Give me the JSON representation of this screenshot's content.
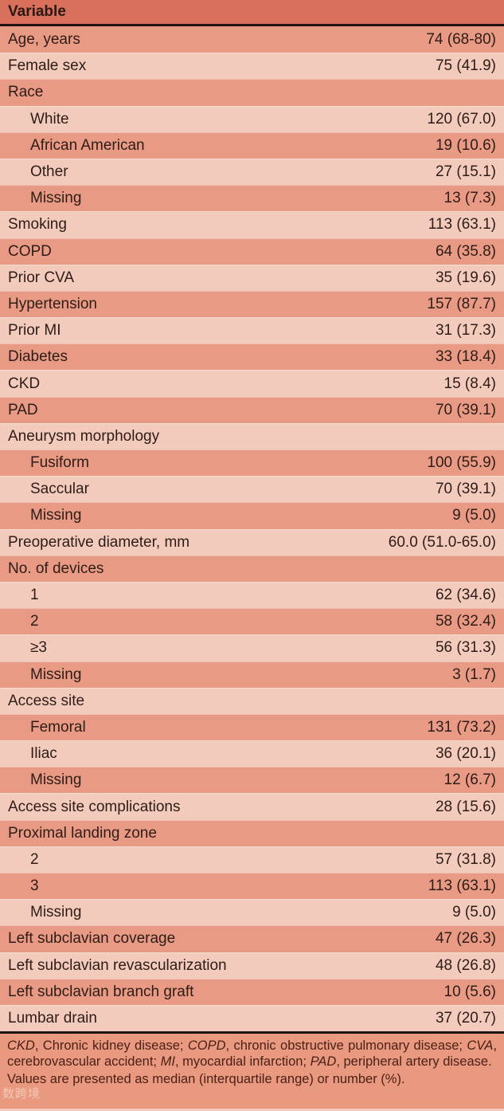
{
  "colors": {
    "header_bg": "#d9705c",
    "row_dark": "#e89a84",
    "row_light": "#f3cbbd",
    "footer_bg": "#e9997f",
    "rule": "#1e1310",
    "text": "#2e1c16",
    "footnote_text": "#4b2015"
  },
  "table": {
    "header": {
      "variable_label": "Variable"
    },
    "rows": [
      {
        "label": "Age, years",
        "value": "74 (68-80)",
        "indent": false
      },
      {
        "label": "Female sex",
        "value": "75 (41.9)",
        "indent": false
      },
      {
        "label": "Race",
        "value": "",
        "indent": false
      },
      {
        "label": "White",
        "value": "120 (67.0)",
        "indent": true
      },
      {
        "label": "African American",
        "value": "19 (10.6)",
        "indent": true
      },
      {
        "label": "Other",
        "value": "27 (15.1)",
        "indent": true
      },
      {
        "label": "Missing",
        "value": "13 (7.3)",
        "indent": true
      },
      {
        "label": "Smoking",
        "value": "113 (63.1)",
        "indent": false
      },
      {
        "label": "COPD",
        "value": "64 (35.8)",
        "indent": false
      },
      {
        "label": "Prior CVA",
        "value": "35 (19.6)",
        "indent": false
      },
      {
        "label": "Hypertension",
        "value": "157 (87.7)",
        "indent": false
      },
      {
        "label": "Prior MI",
        "value": "31 (17.3)",
        "indent": false
      },
      {
        "label": "Diabetes",
        "value": "33 (18.4)",
        "indent": false
      },
      {
        "label": "CKD",
        "value": "15 (8.4)",
        "indent": false
      },
      {
        "label": "PAD",
        "value": "70 (39.1)",
        "indent": false
      },
      {
        "label": "Aneurysm morphology",
        "value": "",
        "indent": false
      },
      {
        "label": "Fusiform",
        "value": "100 (55.9)",
        "indent": true
      },
      {
        "label": "Saccular",
        "value": "70 (39.1)",
        "indent": true
      },
      {
        "label": "Missing",
        "value": "9 (5.0)",
        "indent": true
      },
      {
        "label": "Preoperative diameter, mm",
        "value": "60.0 (51.0-65.0)",
        "indent": false
      },
      {
        "label": "No. of devices",
        "value": "",
        "indent": false
      },
      {
        "label": "1",
        "value": "62 (34.6)",
        "indent": true
      },
      {
        "label": "2",
        "value": "58 (32.4)",
        "indent": true
      },
      {
        "label": "≥3",
        "value": "56 (31.3)",
        "indent": true
      },
      {
        "label": "Missing",
        "value": "3 (1.7)",
        "indent": true
      },
      {
        "label": "Access site",
        "value": "",
        "indent": false
      },
      {
        "label": "Femoral",
        "value": "131 (73.2)",
        "indent": true
      },
      {
        "label": "Iliac",
        "value": "36 (20.1)",
        "indent": true
      },
      {
        "label": "Missing",
        "value": "12 (6.7)",
        "indent": true
      },
      {
        "label": "Access site complications",
        "value": "28 (15.6)",
        "indent": false
      },
      {
        "label": "Proximal landing zone",
        "value": "",
        "indent": false
      },
      {
        "label": "2",
        "value": "57 (31.8)",
        "indent": true
      },
      {
        "label": "3",
        "value": "113 (63.1)",
        "indent": true
      },
      {
        "label": "Missing",
        "value": "9 (5.0)",
        "indent": true
      },
      {
        "label": "Left subclavian coverage",
        "value": "47 (26.3)",
        "indent": false
      },
      {
        "label": "Left subclavian revascularization",
        "value": "48 (26.8)",
        "indent": false
      },
      {
        "label": "Left subclavian branch graft",
        "value": "10 (5.6)",
        "indent": false
      },
      {
        "label": "Lumbar drain",
        "value": "37 (20.7)",
        "indent": false
      }
    ]
  },
  "footer": {
    "abbreviation_segments": [
      {
        "t": "CKD",
        "i": true
      },
      {
        "t": ", Chronic kidney disease; ",
        "i": false
      },
      {
        "t": "COPD",
        "i": true
      },
      {
        "t": ", chronic obstructive pulmonary disease; ",
        "i": false
      },
      {
        "t": "CVA",
        "i": true
      },
      {
        "t": ", cerebrovascular accident; ",
        "i": false
      },
      {
        "t": "MI",
        "i": true
      },
      {
        "t": ", myocardial infarction; ",
        "i": false
      },
      {
        "t": "PAD",
        "i": true
      },
      {
        "t": ", peripheral artery disease.",
        "i": false
      }
    ],
    "values_note": "Values are presented as median (interquartile range) or number (%).",
    "watermark": "数跨境"
  }
}
